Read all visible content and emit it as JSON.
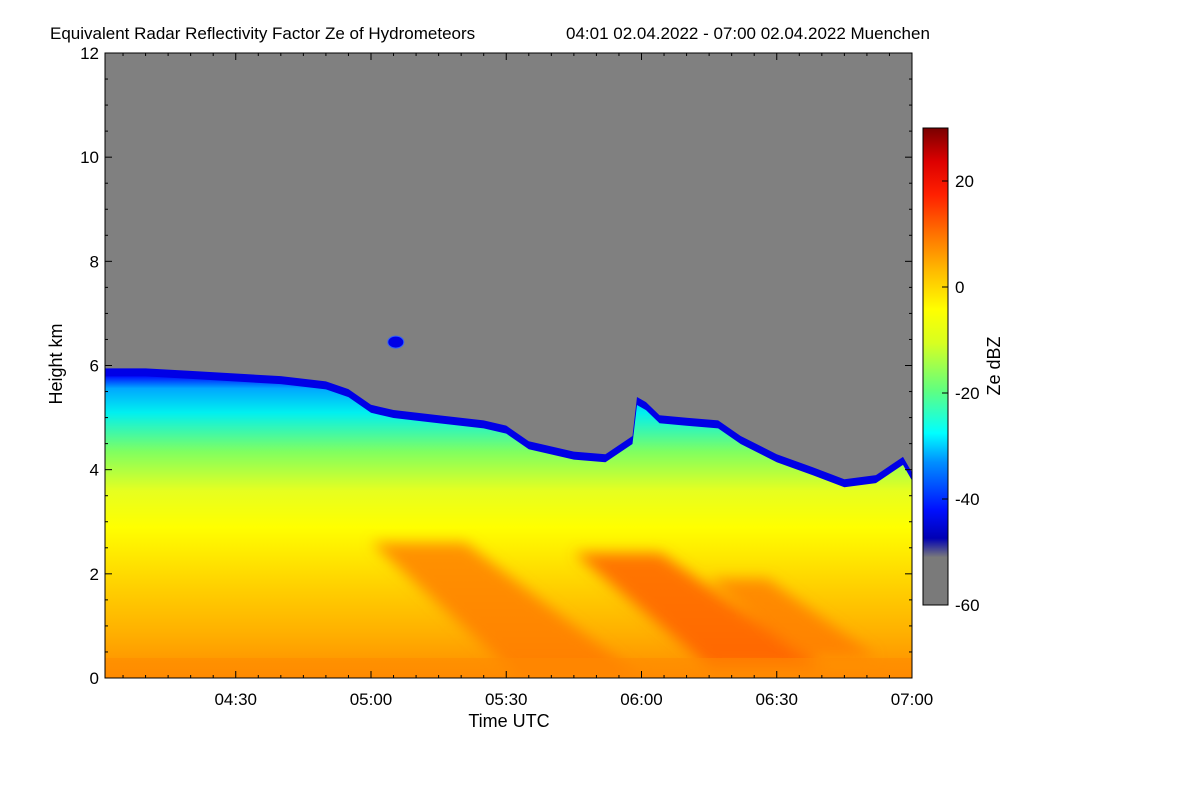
{
  "chart_data": {
    "type": "heatmap",
    "title": "Equivalent Radar Reflectivity Factor Ze of Hydrometeors",
    "subtitle": "04:01 02.04.2022 - 07:00 02.04.2022 Muenchen",
    "xlabel": "Time UTC",
    "ylabel": "Height km",
    "colorbar_label": "Ze dBZ",
    "x_range_minutes": [
      241,
      420
    ],
    "ylim": [
      0,
      12
    ],
    "x_ticks": [
      {
        "label": "04:30",
        "minutes": 270
      },
      {
        "label": "05:00",
        "minutes": 300
      },
      {
        "label": "05:30",
        "minutes": 330
      },
      {
        "label": "06:00",
        "minutes": 360
      },
      {
        "label": "06:30",
        "minutes": 390
      },
      {
        "label": "07:00",
        "minutes": 420
      }
    ],
    "y_ticks": [
      0,
      2,
      4,
      6,
      8,
      10,
      12
    ],
    "colorbar_range": [
      -60,
      30
    ],
    "colorbar_ticks": [
      -60,
      -40,
      -20,
      0,
      20
    ],
    "no_signal_color": "#808080",
    "colormap": [
      "#808080",
      "#0000cc",
      "#0033ff",
      "#00ffff",
      "#66ff66",
      "#ffff00",
      "#ff9900",
      "#ff3300",
      "#cc0000",
      "#800000"
    ],
    "echo_top_km": [
      {
        "t": 241,
        "h": 5.85
      },
      {
        "t": 250,
        "h": 5.85
      },
      {
        "t": 260,
        "h": 5.8
      },
      {
        "t": 270,
        "h": 5.75
      },
      {
        "t": 280,
        "h": 5.7
      },
      {
        "t": 290,
        "h": 5.6
      },
      {
        "t": 295,
        "h": 5.45
      },
      {
        "t": 300,
        "h": 5.15
      },
      {
        "t": 305,
        "h": 5.05
      },
      {
        "t": 315,
        "h": 4.95
      },
      {
        "t": 325,
        "h": 4.85
      },
      {
        "t": 330,
        "h": 4.75
      },
      {
        "t": 335,
        "h": 4.45
      },
      {
        "t": 345,
        "h": 4.25
      },
      {
        "t": 352,
        "h": 4.2
      },
      {
        "t": 358,
        "h": 4.55
      },
      {
        "t": 359,
        "h": 5.3
      },
      {
        "t": 361,
        "h": 5.2
      },
      {
        "t": 364,
        "h": 4.95
      },
      {
        "t": 370,
        "h": 4.9
      },
      {
        "t": 377,
        "h": 4.85
      },
      {
        "t": 382,
        "h": 4.55
      },
      {
        "t": 390,
        "h": 4.2
      },
      {
        "t": 398,
        "h": 3.95
      },
      {
        "t": 405,
        "h": 3.72
      },
      {
        "t": 412,
        "h": 3.8
      },
      {
        "t": 418,
        "h": 4.15
      },
      {
        "t": 420,
        "h": 3.85
      }
    ],
    "isolated_echo": {
      "t": 305.5,
      "h": 6.45
    },
    "high_reflectivity_bands": [
      {
        "t_start": 300,
        "t_end": 360,
        "h_top": 2.6,
        "h_bottom": 0.0,
        "ze": 5
      },
      {
        "t_start": 345,
        "t_end": 400,
        "h_top": 2.4,
        "h_bottom": 0.2,
        "ze": 8
      },
      {
        "t_start": 375,
        "t_end": 412,
        "h_top": 1.9,
        "h_bottom": 0.4,
        "ze": 6
      }
    ]
  }
}
